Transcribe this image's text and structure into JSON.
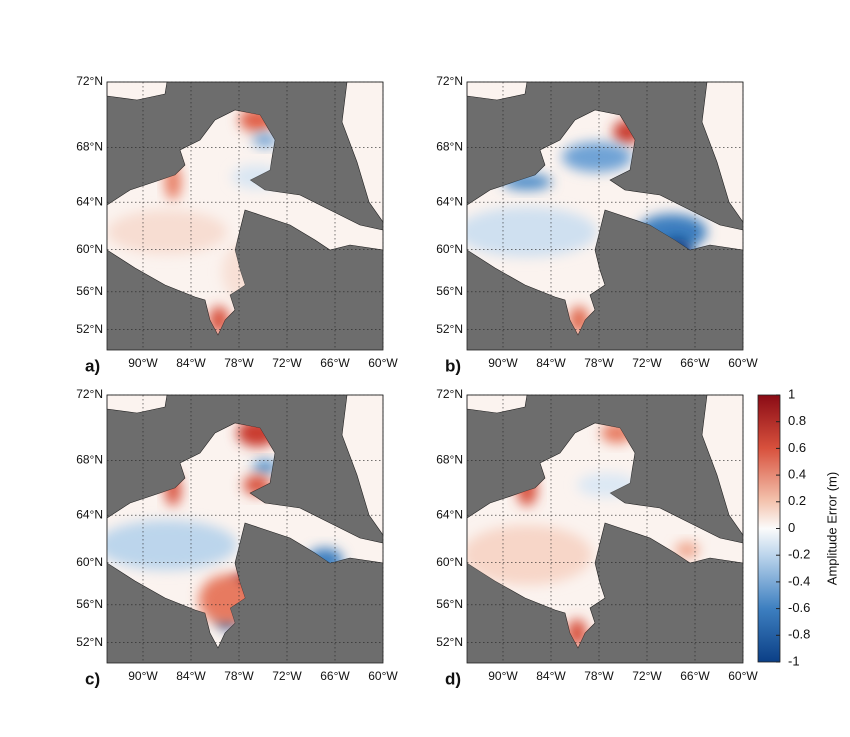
{
  "map": {
    "panels": [
      {
        "label": "a)"
      },
      {
        "label": "b)"
      },
      {
        "label": "c)"
      },
      {
        "label": "d)"
      }
    ],
    "lat_range": [
      72,
      49.7
    ],
    "lon_range": [
      94.5,
      60
    ],
    "lat_ticks": [
      {
        "value": 72,
        "label": "72°N"
      },
      {
        "value": 68,
        "label": "68°N"
      },
      {
        "value": 64,
        "label": "64°N"
      },
      {
        "value": 60,
        "label": "60°N"
      },
      {
        "value": 56,
        "label": "56°N"
      },
      {
        "value": 52,
        "label": "52°N"
      }
    ],
    "lon_ticks": [
      {
        "value": 90,
        "label": "90°W"
      },
      {
        "value": 84,
        "label": "84°W"
      },
      {
        "value": 78,
        "label": "78°W"
      },
      {
        "value": 72,
        "label": "72°W"
      },
      {
        "value": 66,
        "label": "66°W"
      },
      {
        "value": 60,
        "label": "60°W"
      }
    ],
    "colorbar": {
      "label": "Amplitude Error (m)",
      "range": [
        -1,
        1
      ],
      "ticks": [
        1,
        0.8,
        0.6,
        0.4,
        0.2,
        0,
        -0.2,
        -0.4,
        -0.6,
        -0.8,
        -1
      ]
    }
  }
}
